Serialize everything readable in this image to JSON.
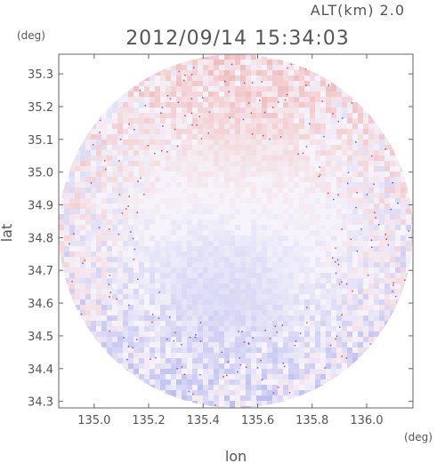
{
  "chart_data": {
    "type": "heatmap",
    "title": "2012/09/14 15:34:03",
    "altitude_label": "ALT(km) 2.0",
    "xlabel": "lon",
    "ylabel": "lat",
    "x_unit": "(deg)",
    "y_unit": "(deg)",
    "xlim": [
      134.87,
      136.17
    ],
    "ylim": [
      34.28,
      35.36
    ],
    "x_ticks": [
      135.0,
      135.2,
      135.4,
      135.6,
      135.8,
      136.0
    ],
    "x_tick_labels": [
      "135.0",
      "135.2",
      "135.4",
      "135.6",
      "135.8",
      "136.0"
    ],
    "y_ticks": [
      34.3,
      34.4,
      34.5,
      34.6,
      34.7,
      34.8,
      34.9,
      35.0,
      35.1,
      35.2,
      35.3
    ],
    "y_tick_labels": [
      "34.3",
      "34.4",
      "34.5",
      "34.6",
      "34.7",
      "34.8",
      "34.9",
      "35.0",
      "35.1",
      "35.2",
      "35.3"
    ],
    "radar_center": [
      135.52,
      34.82
    ],
    "radar_radius_deg": 0.54,
    "grid": false,
    "colors": {
      "positive": "#f0b4b4",
      "negative": "#b4b4f0",
      "neutral": "#f6f4fa",
      "axis": "#666666",
      "text": "#555555"
    }
  }
}
